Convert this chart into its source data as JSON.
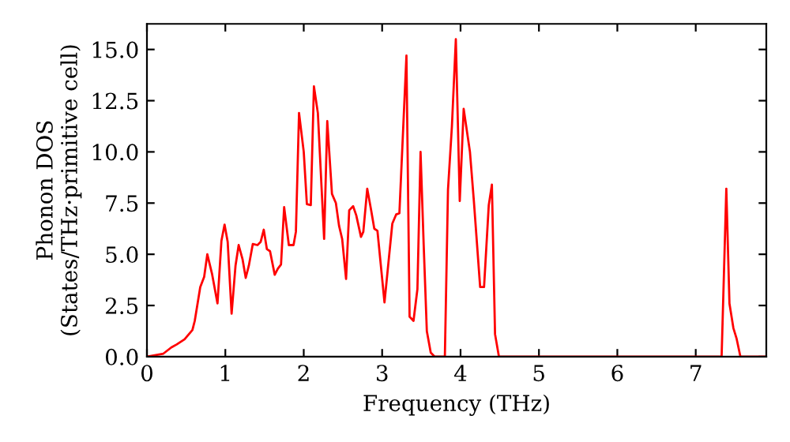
{
  "chart_data": {
    "type": "line",
    "xlabel": "Frequency (THz)",
    "ylabel": "Phonon DOS\n(States/THz·primitive cell)",
    "series": [
      {
        "color": "#ff0000",
        "x": [
          0,
          0.21,
          0.31,
          0.38,
          0.48,
          0.58,
          0.61,
          0.68,
          0.73,
          0.77,
          0.83,
          0.9,
          0.95,
          0.99,
          1.03,
          1.08,
          1.13,
          1.17,
          1.22,
          1.26,
          1.3,
          1.35,
          1.41,
          1.45,
          1.49,
          1.53,
          1.57,
          1.63,
          1.67,
          1.71,
          1.75,
          1.81,
          1.87,
          1.9,
          1.94,
          2.0,
          2.04,
          2.09,
          2.13,
          2.18,
          2.26,
          2.3,
          2.36,
          2.41,
          2.45,
          2.49,
          2.54,
          2.58,
          2.63,
          2.67,
          2.73,
          2.76,
          2.81,
          2.86,
          2.9,
          2.94,
          3.03,
          3.13,
          3.18,
          3.22,
          3.31,
          3.35,
          3.4,
          3.45,
          3.49,
          3.53,
          3.57,
          3.62,
          3.67,
          3.8,
          3.84,
          3.89,
          3.94,
          3.99,
          4.04,
          4.12,
          4.17,
          4.25,
          4.3,
          4.36,
          4.4,
          4.44,
          4.49,
          7.33,
          7.39,
          7.43,
          7.48,
          7.52,
          7.57,
          7.9
        ],
        "values": [
          0,
          0.15,
          0.45,
          0.6,
          0.85,
          1.3,
          1.75,
          3.4,
          3.9,
          5.0,
          4.05,
          2.6,
          5.65,
          6.45,
          5.6,
          2.1,
          4.45,
          5.45,
          4.75,
          3.85,
          4.45,
          5.5,
          5.45,
          5.6,
          6.2,
          5.25,
          5.15,
          4.0,
          4.3,
          4.5,
          7.3,
          5.45,
          5.45,
          6.1,
          11.9,
          10.0,
          7.45,
          7.4,
          13.2,
          11.9,
          5.75,
          11.5,
          7.95,
          7.5,
          6.4,
          5.75,
          3.8,
          7.15,
          7.35,
          6.9,
          5.85,
          6.1,
          8.2,
          7.15,
          6.25,
          6.15,
          2.65,
          6.5,
          6.95,
          7.0,
          14.7,
          1.95,
          1.75,
          3.3,
          10.0,
          5.45,
          1.25,
          0.2,
          0,
          0,
          8.15,
          11.25,
          15.5,
          7.6,
          12.1,
          10.0,
          7.6,
          3.4,
          3.4,
          7.4,
          8.4,
          1.1,
          0,
          0,
          8.2,
          2.6,
          1.4,
          0.9,
          0,
          0
        ]
      }
    ],
    "xlim": [
      0,
      7.9
    ],
    "ylim": [
      0,
      16.25
    ],
    "xticks": [
      0,
      1,
      2,
      3,
      4,
      5,
      6,
      7
    ],
    "yticks": [
      {
        "value": 0,
        "label": "0.0"
      },
      {
        "value": 2.5,
        "label": "2.5"
      },
      {
        "value": 5,
        "label": "5.0"
      },
      {
        "value": 7.5,
        "label": "7.5"
      },
      {
        "value": 10,
        "label": "10.0"
      },
      {
        "value": 12.5,
        "label": "12.5"
      },
      {
        "value": 15,
        "label": "15.0"
      }
    ],
    "grid": false,
    "line_style": "solid",
    "marker": "none"
  }
}
